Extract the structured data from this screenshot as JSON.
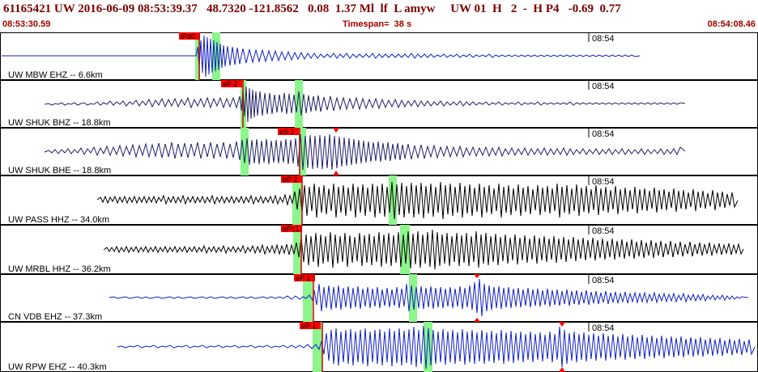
{
  "header": {
    "title": "61165421 UW 2016-06-09 08:53:39.37   48.7320 -121.8562   0.08  1.37 Ml  lf  L amyw     UW 01  H   2  -  H P4   -0.69  0.77",
    "start_time": "08:53:30.59",
    "timespan": "Timespan=  38 s",
    "end_time": "08:54:08.46"
  },
  "colors": {
    "title": "#7a0000",
    "pick_box": "#ff0000",
    "pick_line": "#cc0000",
    "highlight": "#8cf58c",
    "trace_blue": "#1020c8",
    "trace_navy": "#20206a",
    "trace_black": "#000000"
  },
  "channels": [
    {
      "label": "UW MBW EHZ -- 6.6km",
      "pick": "iPd0",
      "tick": "08:54",
      "color": "#1020c8"
    },
    {
      "label": "UW SHUK BHZ -- 18.8km",
      "pick": "eP 2",
      "tick": "08:54",
      "color": "#20206a"
    },
    {
      "label": "UW SHUK BHE -- 18.8km",
      "pick": "eS 1",
      "tick": "08:54",
      "color": "#20206a"
    },
    {
      "label": "UW PASS HHZ -- 34.0km",
      "pick": "eP 2",
      "tick": "08:54",
      "color": "#000000"
    },
    {
      "label": "UW MRBL HHZ -- 36.2km",
      "pick": "ePc1",
      "tick": "08:54",
      "color": "#000000"
    },
    {
      "label": "CN VDB EHZ -- 37.3km",
      "pick": "eP 1",
      "tick": "08:54",
      "color": "#1020c8"
    },
    {
      "label": "UW RPW EHZ -- 40.3km",
      "pick": "eP 1",
      "tick": "08:54",
      "color": "#1020c8"
    }
  ]
}
